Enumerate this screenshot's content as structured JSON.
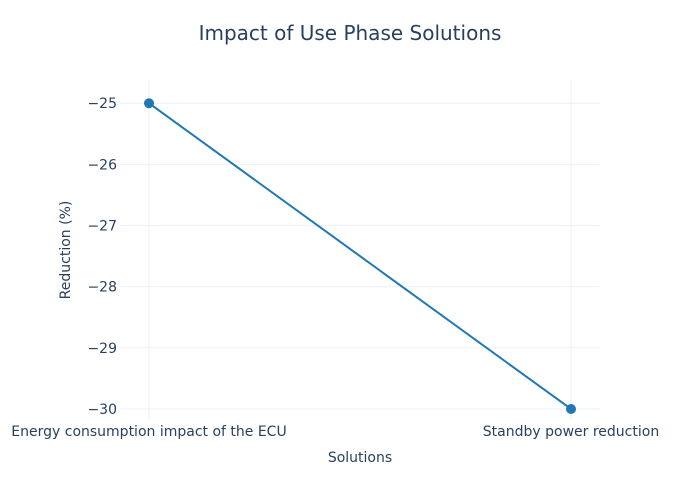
{
  "chart_data": {
    "type": "line",
    "title": "Impact of Use Phase Solutions",
    "xlabel": "Solutions",
    "ylabel": "Reduction (%)",
    "categories": [
      "Energy consumption impact of the ECU",
      "Standby power reduction"
    ],
    "values": [
      -25,
      -30
    ],
    "ylim": [
      -30.18,
      -24.62
    ],
    "yticks": [
      -25,
      -26,
      -27,
      -28,
      -29,
      -30
    ],
    "ytick_labels": [
      "−25",
      "−26",
      "−27",
      "−28",
      "−29",
      "−30"
    ],
    "grid": true,
    "legend": "none",
    "series_color": "#1f77b4"
  }
}
